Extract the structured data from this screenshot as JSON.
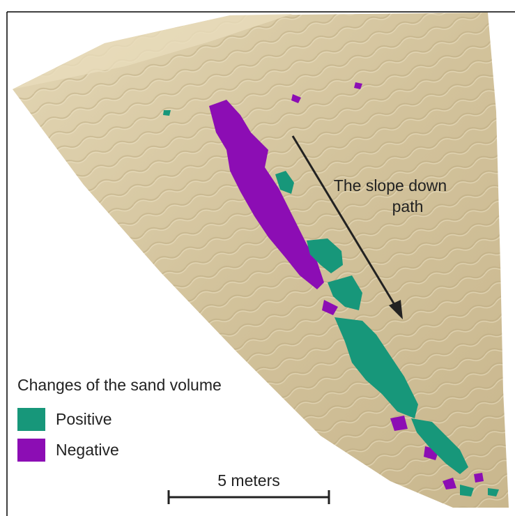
{
  "annotation": [
    "The slope down",
    "path"
  ],
  "legend": {
    "title": "Changes of the sand volume",
    "items": [
      {
        "label": "Positive",
        "color": "#17977a"
      },
      {
        "label": "Negative",
        "color": "#8c0db4"
      }
    ]
  },
  "scale_bar": {
    "label": "5 meters"
  }
}
